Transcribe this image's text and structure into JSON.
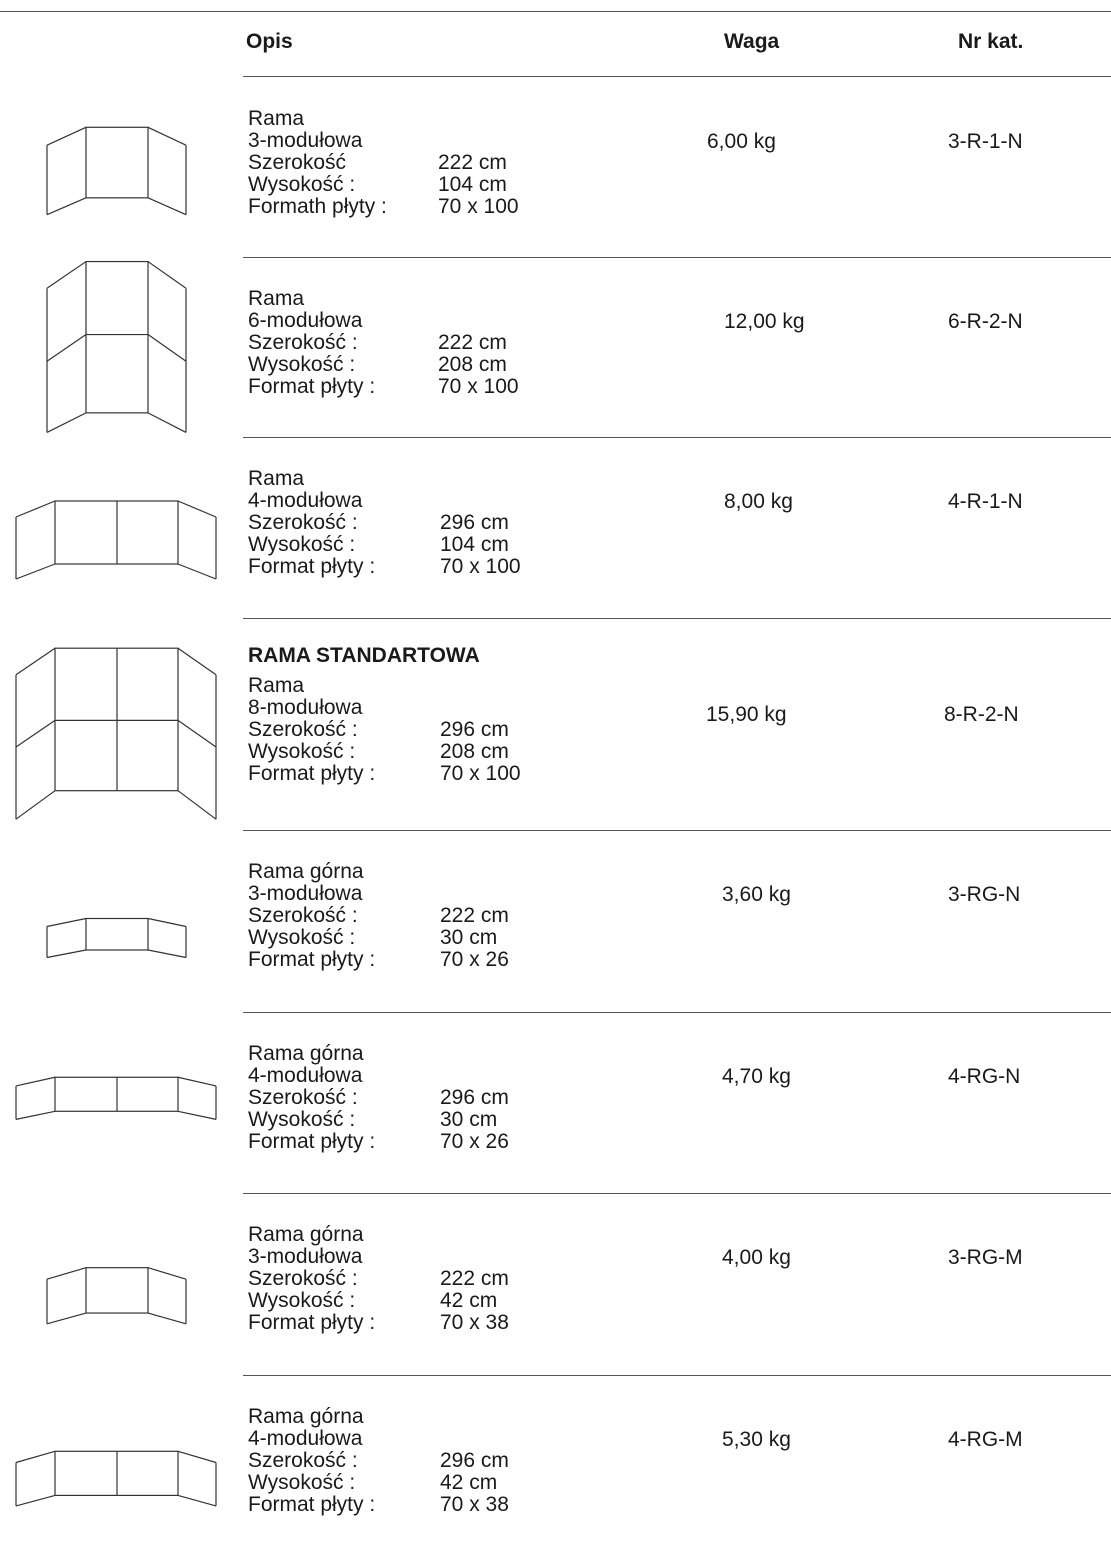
{
  "header": {
    "opis": "Opis",
    "waga": "Waga",
    "nr_kat": "Nr kat."
  },
  "rows": [
    {
      "title": "Rama",
      "modules": "3-modułowa",
      "width_label": "Szerokość",
      "width": "222 cm",
      "height_label": "Wysokość :",
      "height": "104 cm",
      "format_label": "Formath płyty :",
      "format": "70 x 100",
      "weight": "6,00 kg",
      "cat": "3-R-1-N",
      "icon": "frame-3-module-icon"
    },
    {
      "title": "Rama",
      "modules": "6-modułowa",
      "width_label": "Szerokość :",
      "width": "222 cm",
      "height_label": "Wysokość :",
      "height": "208 cm",
      "format_label": "Format płyty :",
      "format": "70 x 100",
      "weight": "12,00 kg",
      "cat": "6-R-2-N",
      "icon": "frame-6-module-icon"
    },
    {
      "title": "Rama",
      "modules": "4-modułowa",
      "width_label": "Szerokość :",
      "width": "296 cm",
      "height_label": "Wysokość :",
      "height": "104 cm",
      "format_label": "Format płyty :",
      "format": "70 x 100",
      "weight": "8,00 kg",
      "cat": "4-R-1-N",
      "icon": "frame-4-module-icon"
    },
    {
      "standard": "RAMA STANDARTOWA",
      "title": "Rama",
      "modules": "8-modułowa",
      "width_label": "Szerokość :",
      "width": "296 cm",
      "height_label": "Wysokość :",
      "height": "208 cm",
      "format_label": "Format płyty :",
      "format": "70 x 100",
      "weight": "15,90 kg",
      "cat": "8-R-2-N",
      "icon": "frame-8-module-icon"
    },
    {
      "title": "Rama górna",
      "modules": "3-modułowa",
      "width_label": "Szerokość :",
      "width": "222 cm",
      "height_label": "Wysokość :",
      "height": "30 cm",
      "format_label": "Format płyty :",
      "format": "70 x 26",
      "weight": "3,60 kg",
      "cat": "3-RG-N",
      "icon": "top-frame-3-module-icon"
    },
    {
      "title": "Rama górna",
      "modules": "4-modułowa",
      "width_label": "Szerokość :",
      "width": "296 cm",
      "height_label": "Wysokość :",
      "height": "30 cm",
      "format_label": "Format płyty :",
      "format": "70 x 26",
      "weight": "4,70 kg",
      "cat": "4-RG-N",
      "icon": "top-frame-4-module-icon"
    },
    {
      "title": "Rama górna",
      "modules": "3-modułowa",
      "width_label": "Szerokość :",
      "width": "222 cm",
      "height_label": "Wysokość :",
      "height": "42 cm",
      "format_label": "Format płyty :",
      "format": "70 x 38",
      "weight": "4,00 kg",
      "cat": "3-RG-M",
      "icon": "top-frame-3-module-icon"
    },
    {
      "title": "Rama górna",
      "modules": "4-modułowa",
      "width_label": "Szerokość :",
      "width": "296 cm",
      "height_label": "Wysokość :",
      "height": "42 cm",
      "format_label": "Format płyty :",
      "format": "70 x 38",
      "weight": "5,30 kg",
      "cat": "4-RG-M",
      "icon": "top-frame-4-module-icon"
    }
  ]
}
